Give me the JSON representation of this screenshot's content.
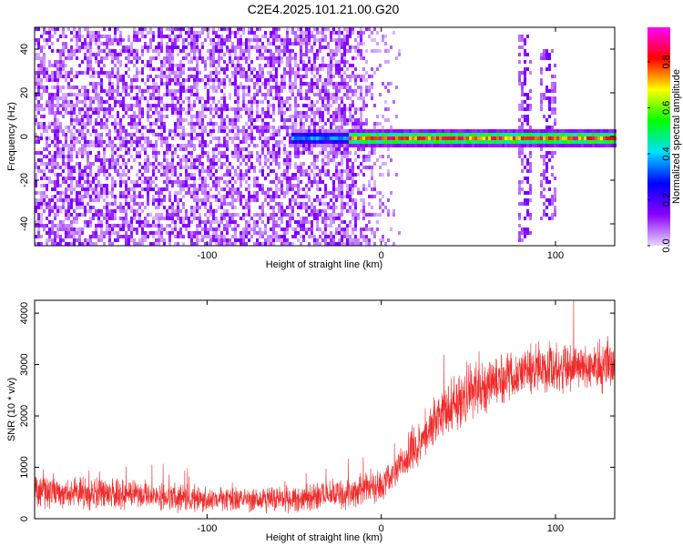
{
  "title": "C2E4.2025.101.21.00.G20",
  "chart_data": [
    {
      "type": "heatmap",
      "xlabel": "Height of straight line (km)",
      "ylabel": "Frequency (Hz)",
      "xlim": [
        -199,
        134
      ],
      "ylim": [
        -50,
        50
      ],
      "xticks": [
        -100,
        0,
        100
      ],
      "yticks": [
        -40,
        -20,
        0,
        20,
        40
      ],
      "xtick_labels": [
        "-100",
        "0",
        "100"
      ],
      "ytick_labels": [
        "-40",
        "-20",
        "0",
        "20",
        "40"
      ],
      "grid": false,
      "colorbar": {
        "label": "Normalized spectral amplitude",
        "range": [
          0,
          0.95
        ],
        "ticks": [
          0,
          0.2,
          0.4,
          0.6,
          0.8
        ],
        "tick_labels": [
          "0.0",
          "0.2",
          "0.4",
          "0.6",
          "0.8"
        ],
        "colors": [
          "#e8d6ff",
          "#8800ff",
          "#0000ff",
          "#00e0ff",
          "#00ff00",
          "#ffff00",
          "#ff0000",
          "#ff00ff"
        ]
      },
      "features": {
        "noise_region_x": [
          -199,
          -20
        ],
        "fade_region_x": [
          -20,
          10
        ],
        "carrier_line": {
          "x": [
            -52,
            134
          ],
          "frequency": 0,
          "peak_amplitude": 0.9
        },
        "vertical_bursts": [
          {
            "x": 82,
            "frequency_range": [
              -48,
              48
            ]
          },
          {
            "x": 95,
            "frequency_range": [
              -38,
              40
            ]
          }
        ]
      }
    },
    {
      "type": "line",
      "xlabel": "Height of straight line (km)",
      "ylabel": "SNR (10 * v/v)",
      "xlim": [
        -199,
        134
      ],
      "ylim": [
        0,
        4250
      ],
      "xticks": [
        -100,
        0,
        100
      ],
      "yticks": [
        0,
        1000,
        2000,
        3000,
        4000
      ],
      "xtick_labels": [
        "-100",
        "0",
        "100"
      ],
      "ytick_labels": [
        "0",
        "1000",
        "2000",
        "3000",
        "4000"
      ],
      "grid": false,
      "series_color": "#ee2c2c",
      "series": [
        {
          "x": [
            -199,
            -175,
            -150,
            -125,
            -100,
            -75,
            -50,
            -30,
            -10,
            0,
            10,
            20,
            30,
            40,
            50,
            60,
            70,
            80,
            90,
            100,
            110,
            120,
            134
          ],
          "values": [
            530,
            500,
            470,
            410,
            390,
            360,
            380,
            450,
            550,
            660,
            980,
            1400,
            1850,
            2200,
            2450,
            2600,
            2750,
            2850,
            2900,
            2950,
            2950,
            2950,
            3000
          ],
          "spread": [
            380,
            380,
            360,
            320,
            300,
            280,
            300,
            340,
            380,
            420,
            500,
            560,
            600,
            620,
            620,
            600,
            600,
            600,
            620,
            600,
            560,
            560,
            650
          ]
        }
      ]
    }
  ]
}
